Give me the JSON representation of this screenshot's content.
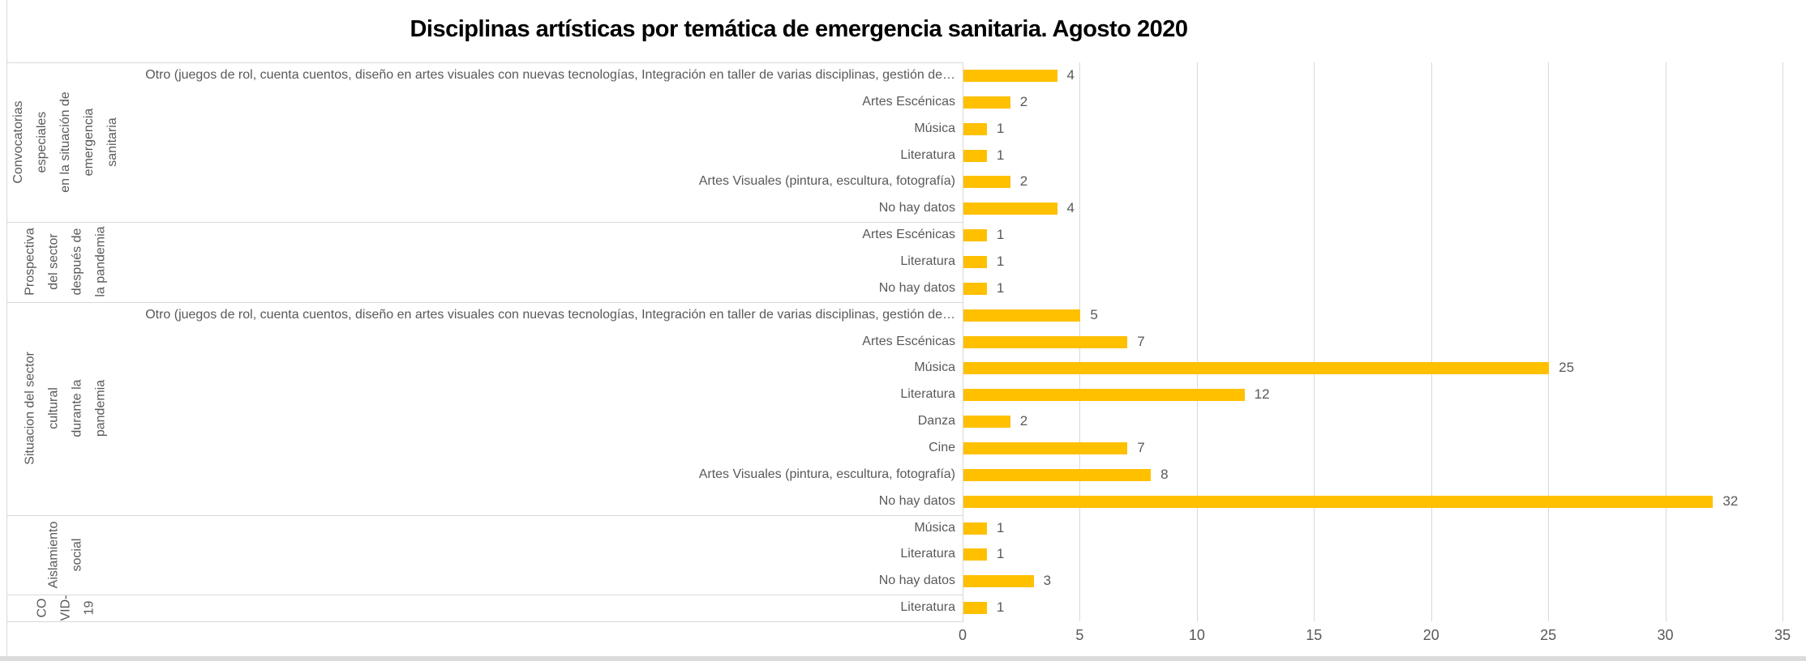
{
  "chart_data": {
    "type": "bar",
    "orientation": "horizontal",
    "title": "Disciplinas artísticas por temática de emergencia sanitaria. Agosto 2020",
    "xlabel": "",
    "ylabel": "",
    "xlim": [
      0,
      35
    ],
    "x_ticks": [
      0,
      5,
      10,
      15,
      20,
      25,
      30,
      35
    ],
    "grid": true,
    "bar_color": "#FFC000",
    "gridline_color": "#D9D9D9",
    "label_color": "#595959",
    "value_labels_shown": true,
    "groups": [
      {
        "label": "Convocatorias especiales en la situación de emergencia sanitaria",
        "label_lines": [
          "Convocatorias especiales",
          "en la situación de",
          "emergencia sanitaria"
        ],
        "items": [
          {
            "label": "Otro (juegos de rol, cuenta cuentos, diseño en artes visuales con nuevas tecnologías, Integración en taller de varias disciplinas, gestión de…",
            "value": 4
          },
          {
            "label": "Artes Escénicas",
            "value": 2
          },
          {
            "label": "Música",
            "value": 1
          },
          {
            "label": "Literatura",
            "value": 1
          },
          {
            "label": "Artes Visuales (pintura, escultura, fotografía)",
            "value": 2
          },
          {
            "label": "No hay datos",
            "value": 4
          }
        ]
      },
      {
        "label": "Prospectiva del sector después de la pandemia",
        "label_lines": [
          "Prospectiva",
          "del sector",
          "después de",
          "la pandemia"
        ],
        "items": [
          {
            "label": "Artes Escénicas",
            "value": 1
          },
          {
            "label": "Literatura",
            "value": 1
          },
          {
            "label": "No hay datos",
            "value": 1
          }
        ]
      },
      {
        "label": "Situacion del sector cultural durante la pandemia",
        "label_lines": [
          "Situacion del sector cultural",
          "durante la pandemia"
        ],
        "items": [
          {
            "label": "Otro (juegos de rol, cuenta cuentos, diseño en artes visuales con nuevas tecnologías, Integración en taller de varias disciplinas, gestión de…",
            "value": 5
          },
          {
            "label": "Artes Escénicas",
            "value": 7
          },
          {
            "label": "Música",
            "value": 25
          },
          {
            "label": "Literatura",
            "value": 12
          },
          {
            "label": "Danza",
            "value": 2
          },
          {
            "label": "Cine",
            "value": 7
          },
          {
            "label": "Artes Visuales (pintura, escultura, fotografía)",
            "value": 8
          },
          {
            "label": "No hay datos",
            "value": 32
          }
        ]
      },
      {
        "label": "Aislamiento social",
        "label_lines": [
          "Aislamiento",
          "social"
        ],
        "items": [
          {
            "label": "Música",
            "value": 1
          },
          {
            "label": "Literatura",
            "value": 1
          },
          {
            "label": "No hay datos",
            "value": 3
          }
        ]
      },
      {
        "label": "COVID-19",
        "label_lines": [
          "CO",
          "VID-",
          "19"
        ],
        "items": [
          {
            "label": "Literatura",
            "value": 1
          }
        ]
      }
    ]
  }
}
